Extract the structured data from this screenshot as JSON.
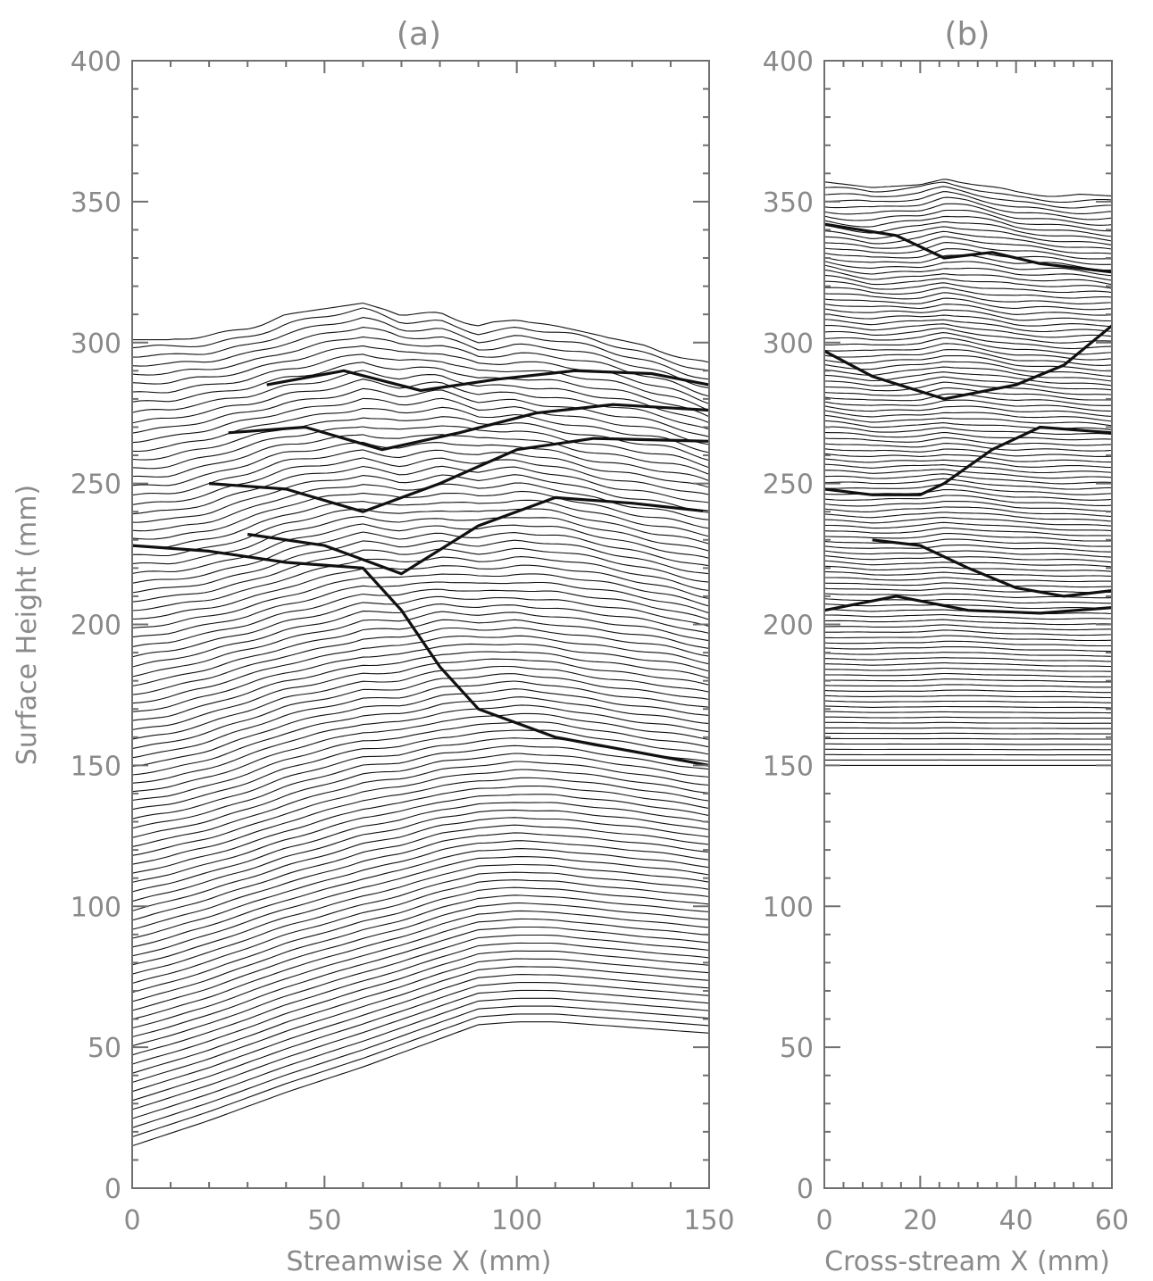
{
  "chart_data": [
    {
      "type": "line",
      "title": "(a)",
      "xlabel": "Streamwise X (mm)",
      "ylabel": "Surface Height (mm)",
      "xlim": [
        0,
        150
      ],
      "ylim": [
        0,
        400
      ],
      "xticks": [
        0,
        50,
        100,
        150
      ],
      "xtick_labels": [
        "0",
        "50",
        "100",
        "150"
      ],
      "yticks": [
        0,
        50,
        100,
        150,
        200,
        250,
        300,
        350,
        400
      ],
      "ytick_labels": [
        "0",
        "50",
        "100",
        "150",
        "200",
        "250",
        "300",
        "350",
        "400"
      ],
      "x_minor_step": 10,
      "y_minor_step": 10,
      "trace_count": 90,
      "line_color": "#111111",
      "bottom_envelope": {
        "x": [
          0,
          20,
          40,
          60,
          80,
          90,
          100,
          110,
          120,
          130,
          140,
          150
        ],
        "y": [
          15,
          24,
          34,
          43,
          53,
          58,
          59,
          59,
          58,
          57,
          56,
          55
        ]
      },
      "top_envelope": {
        "x": [
          0,
          10,
          20,
          30,
          40,
          50,
          60,
          70,
          80,
          90,
          100,
          110,
          120,
          130,
          140,
          150
        ],
        "y": [
          301,
          301,
          303,
          306,
          310,
          312,
          314,
          310,
          311,
          307,
          308,
          306,
          303,
          300,
          297,
          293
        ]
      },
      "ridge_features": [
        {
          "x": [
            0,
            20,
            40,
            60,
            70,
            75,
            80,
            90,
            110,
            150
          ],
          "y": [
            228,
            226,
            222,
            220,
            205,
            195,
            185,
            170,
            160,
            150
          ]
        },
        {
          "x": [
            30,
            50,
            70,
            90,
            110,
            130,
            150
          ],
          "y": [
            232,
            228,
            218,
            235,
            245,
            243,
            240
          ]
        },
        {
          "x": [
            20,
            40,
            60,
            80,
            100,
            120,
            150
          ],
          "y": [
            250,
            248,
            240,
            250,
            262,
            266,
            265
          ]
        },
        {
          "x": [
            25,
            45,
            65,
            85,
            105,
            125,
            150
          ],
          "y": [
            268,
            270,
            262,
            268,
            275,
            278,
            276
          ]
        },
        {
          "x": [
            35,
            55,
            75,
            95,
            115,
            135,
            150
          ],
          "y": [
            285,
            290,
            283,
            287,
            290,
            289,
            285
          ]
        }
      ]
    },
    {
      "type": "line",
      "title": "(b)",
      "xlabel": "Cross-stream X (mm)",
      "ylabel": "",
      "xlim": [
        0,
        60
      ],
      "ylim": [
        0,
        400
      ],
      "xticks": [
        0,
        20,
        40,
        60
      ],
      "xtick_labels": [
        "0",
        "20",
        "40",
        "60"
      ],
      "yticks": [
        0,
        50,
        100,
        150,
        200,
        250,
        300,
        350,
        400
      ],
      "ytick_labels": [
        "0",
        "50",
        "100",
        "150",
        "200",
        "250",
        "300",
        "350",
        "400"
      ],
      "x_minor_step": 4,
      "y_minor_step": 10,
      "trace_count": 110,
      "line_color": "#111111",
      "bottom_envelope": {
        "x": [
          0,
          60
        ],
        "y": [
          150,
          150
        ]
      },
      "top_envelope": {
        "x": [
          0,
          10,
          20,
          25,
          30,
          40,
          50,
          60
        ],
        "y": [
          357,
          355,
          356,
          358,
          357,
          354,
          353,
          352
        ]
      },
      "ridge_features": [
        {
          "x": [
            0,
            15,
            25,
            35,
            45,
            60
          ],
          "y": [
            342,
            338,
            330,
            332,
            328,
            325
          ]
        },
        {
          "x": [
            0,
            10,
            25,
            40,
            50,
            60
          ],
          "y": [
            297,
            288,
            280,
            285,
            292,
            306
          ]
        },
        {
          "x": [
            0,
            10,
            20,
            25,
            35,
            45,
            60
          ],
          "y": [
            248,
            246,
            246,
            250,
            262,
            270,
            268
          ]
        },
        {
          "x": [
            10,
            20,
            30,
            40,
            50,
            60
          ],
          "y": [
            230,
            228,
            220,
            213,
            210,
            212
          ]
        },
        {
          "x": [
            0,
            15,
            30,
            45,
            60
          ],
          "y": [
            205,
            210,
            205,
            204,
            206
          ]
        }
      ]
    }
  ]
}
